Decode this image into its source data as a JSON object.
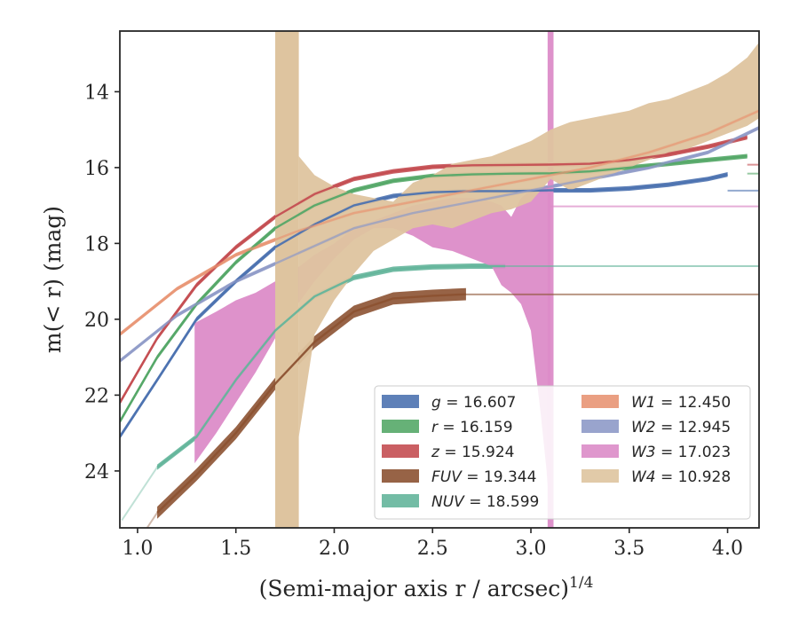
{
  "chart_data": {
    "type": "area",
    "xlabel": "(Semi-major axis r / arcsec)",
    "xlabel_exponent": "1/4",
    "ylabel": "m(< r) (mag)",
    "xlim": [
      0.91,
      4.16
    ],
    "ylim": [
      25.5,
      12.4
    ],
    "y_inverted": true,
    "grid": false,
    "legend_position": "lower-right",
    "x_ticks": [
      1.0,
      1.5,
      2.0,
      2.5,
      3.0,
      3.5,
      4.0
    ],
    "x_tick_labels": [
      "1.0",
      "1.5",
      "2.0",
      "2.5",
      "3.0",
      "3.5",
      "4.0"
    ],
    "y_ticks": [
      14,
      16,
      18,
      20,
      22,
      24
    ],
    "y_tick_labels": [
      "14",
      "16",
      "18",
      "20",
      "22",
      "24"
    ],
    "series": [
      {
        "name": "g = 16.607",
        "band": "g",
        "mag": "16.607",
        "color": "#4c72b0",
        "width_mag": 0.12,
        "asymptote_mag": 16.607,
        "x": [
          0.91,
          1.1,
          1.3,
          1.5,
          1.7,
          1.9,
          2.1,
          2.3,
          2.5,
          2.7,
          2.9,
          3.1,
          3.3,
          3.5,
          3.7,
          3.9,
          4.0
        ],
        "y": [
          23.1,
          21.6,
          20.0,
          19.0,
          18.1,
          17.5,
          17.0,
          16.75,
          16.65,
          16.62,
          16.62,
          16.6,
          16.6,
          16.55,
          16.45,
          16.3,
          16.18
        ]
      },
      {
        "name": "r = 16.159",
        "band": "r",
        "mag": "16.159",
        "color": "#55a868",
        "width_mag": 0.12,
        "asymptote_mag": 16.159,
        "x": [
          0.91,
          1.1,
          1.3,
          1.5,
          1.7,
          1.9,
          2.1,
          2.3,
          2.5,
          2.7,
          2.9,
          3.1,
          3.3,
          3.5,
          3.7,
          3.9,
          4.1
        ],
        "y": [
          22.7,
          21.0,
          19.6,
          18.5,
          17.6,
          17.0,
          16.6,
          16.35,
          16.22,
          16.18,
          16.16,
          16.15,
          16.1,
          16.0,
          15.9,
          15.8,
          15.7
        ]
      },
      {
        "name": "z = 15.924",
        "band": "z",
        "mag": "15.924",
        "color": "#c44e52",
        "width_mag": 0.12,
        "asymptote_mag": 15.924,
        "x": [
          0.91,
          1.1,
          1.3,
          1.5,
          1.7,
          1.9,
          2.1,
          2.3,
          2.5,
          2.7,
          2.9,
          3.1,
          3.3,
          3.5,
          3.7,
          3.9,
          4.1
        ],
        "y": [
          22.2,
          20.5,
          19.1,
          18.1,
          17.3,
          16.7,
          16.3,
          16.1,
          15.98,
          15.94,
          15.93,
          15.92,
          15.9,
          15.8,
          15.65,
          15.45,
          15.2
        ]
      },
      {
        "name": "FUV = 19.344",
        "band": "FUV",
        "mag": "19.344",
        "color": "#8c5232",
        "width_mag": 0.32,
        "asymptote_mag": 19.344,
        "x": [
          1.1,
          1.3,
          1.5,
          1.7,
          1.9,
          2.1,
          2.3,
          2.5,
          2.67
        ],
        "y": [
          25.1,
          24.1,
          23.0,
          21.7,
          20.6,
          19.8,
          19.45,
          19.38,
          19.34
        ]
      },
      {
        "name": "NUV = 18.599",
        "band": "NUV",
        "mag": "18.599",
        "color": "#64b59b",
        "width_mag": 0.14,
        "asymptote_mag": 18.599,
        "x": [
          1.1,
          1.3,
          1.5,
          1.7,
          1.9,
          2.1,
          2.3,
          2.5,
          2.7,
          2.87
        ],
        "y": [
          23.9,
          23.1,
          21.6,
          20.3,
          19.4,
          18.9,
          18.68,
          18.62,
          18.6,
          18.6
        ]
      },
      {
        "name": "W1 = 12.450",
        "band": "W1",
        "mag": "12.450",
        "color": "#e89574",
        "width_mag": 0.1,
        "asymptote_mag": 15.9,
        "x": [
          0.91,
          1.2,
          1.5,
          1.8,
          2.1,
          2.4,
          2.7,
          3.0,
          3.3,
          3.6,
          3.9,
          4.16
        ],
        "y": [
          20.4,
          19.2,
          18.3,
          17.7,
          17.2,
          16.9,
          16.6,
          16.3,
          16.0,
          15.6,
          15.1,
          14.5
        ]
      },
      {
        "name": "W2 = 12.945",
        "band": "W2",
        "mag": "12.945",
        "color": "#8e9ac8",
        "width_mag": 0.1,
        "asymptote_mag": 16.6,
        "x": [
          0.91,
          1.2,
          1.5,
          1.8,
          2.1,
          2.4,
          2.7,
          3.0,
          3.3,
          3.6,
          3.9,
          4.16
        ],
        "y": [
          21.1,
          19.9,
          19.0,
          18.3,
          17.6,
          17.2,
          16.9,
          16.6,
          16.3,
          16.0,
          15.6,
          14.95
        ]
      },
      {
        "name": "W3 = 17.023",
        "band": "W3",
        "mag": "17.023",
        "color": "#dc8cc8",
        "asymptote_mag": 17.023,
        "x": [
          1.29,
          1.4,
          1.5,
          1.6,
          1.7,
          1.8,
          1.9,
          2.0,
          2.1,
          2.2,
          2.3,
          2.4,
          2.5,
          2.6,
          2.7,
          2.8,
          2.85,
          2.9,
          2.95,
          3.0,
          3.05,
          3.08,
          3.1
        ],
        "y_top": [
          20.1,
          19.8,
          19.5,
          19.3,
          19.0,
          18.7,
          18.3,
          18.0,
          17.6,
          17.4,
          17.2,
          17.0,
          16.9,
          16.8,
          16.8,
          16.9,
          17.0,
          17.3,
          16.8,
          16.6,
          16.5,
          16.5,
          16.5
        ],
        "y_bot": [
          23.8,
          23.0,
          22.2,
          21.4,
          20.5,
          19.7,
          19.0,
          18.4,
          17.9,
          17.6,
          17.6,
          17.8,
          18.1,
          18.2,
          18.4,
          18.6,
          19.1,
          19.3,
          19.6,
          20.3,
          22.5,
          24.0,
          25.5
        ],
        "spike_x": [
          3.085,
          3.115
        ]
      },
      {
        "name": "W4 = 10.928",
        "band": "W4",
        "mag": "10.928",
        "color": "#dec49f",
        "asymptote_mag": 13.0,
        "x": [
          1.82,
          1.9,
          2.0,
          2.1,
          2.2,
          2.3,
          2.4,
          2.5,
          2.6,
          2.7,
          2.8,
          2.9,
          3.0,
          3.1,
          3.2,
          3.3,
          3.4,
          3.5,
          3.6,
          3.7,
          3.8,
          3.9,
          4.0,
          4.1,
          4.16
        ],
        "y_top": [
          15.7,
          16.2,
          16.5,
          16.7,
          16.8,
          16.9,
          16.4,
          16.2,
          15.9,
          15.8,
          15.7,
          15.5,
          15.3,
          15.0,
          14.8,
          14.7,
          14.6,
          14.5,
          14.3,
          14.2,
          14.0,
          13.8,
          13.5,
          13.1,
          12.7
        ],
        "y_bot": [
          23.1,
          20.4,
          19.5,
          18.8,
          18.2,
          17.9,
          17.6,
          17.5,
          17.6,
          17.4,
          17.2,
          17.1,
          16.9,
          16.3,
          16.6,
          16.4,
          16.2,
          16.0,
          15.8,
          15.6,
          15.5,
          15.3,
          15.1,
          14.9,
          14.7
        ],
        "band_x": [
          1.7,
          1.82
        ]
      }
    ]
  }
}
